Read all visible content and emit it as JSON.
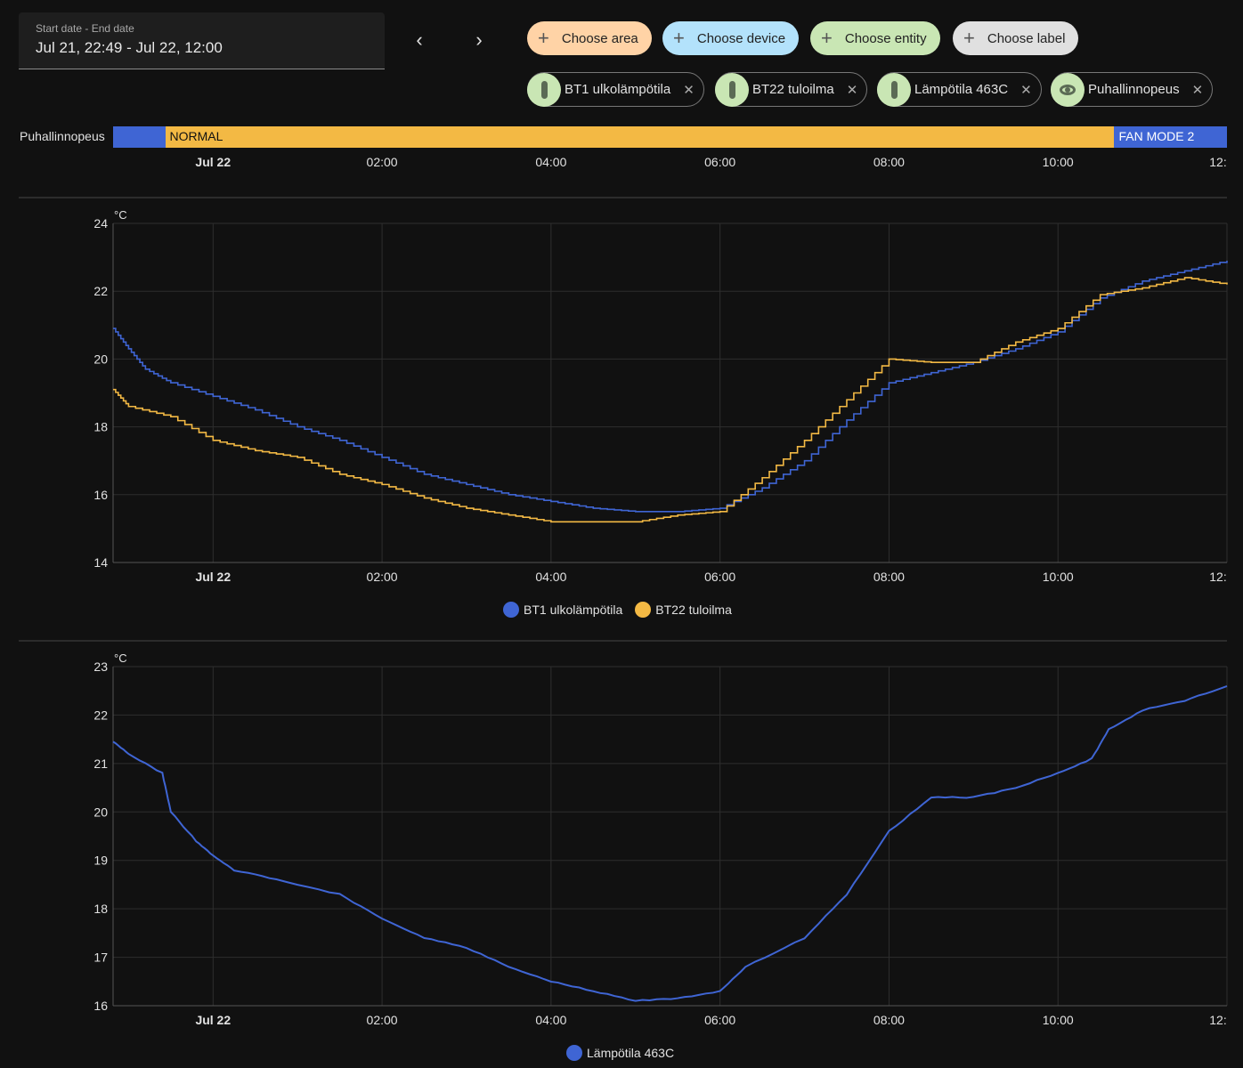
{
  "date_picker": {
    "label": "Start date - End date",
    "value": "Jul 21, 22:49 - Jul 22, 12:00"
  },
  "nav": {
    "prev_icon": "chevron-left-icon",
    "next_icon": "chevron-right-icon",
    "prev": "‹",
    "next": "›"
  },
  "target_chips": [
    {
      "label": "Choose area",
      "color": "#ffd3a6"
    },
    {
      "label": "Choose device",
      "color": "#b3e2fb"
    },
    {
      "label": "Choose entity",
      "color": "#c9e6b4"
    },
    {
      "label": "Choose label",
      "color": "#e0e0e0"
    }
  ],
  "entity_chips": [
    {
      "label": "BT1 ulkolämpötila",
      "icon": "thermometer-icon"
    },
    {
      "label": "BT22 tuloilma",
      "icon": "thermometer-icon"
    },
    {
      "label": "Lämpötila 463C",
      "icon": "thermometer-icon"
    },
    {
      "label": "Puhallinnopeus",
      "icon": "eye-icon"
    }
  ],
  "x_ticks": [
    "Jul 22",
    "02:00",
    "04:00",
    "06:00",
    "08:00",
    "10:00",
    "12:"
  ],
  "timeline": {
    "entity": "Puhallinnopeus",
    "segments": [
      {
        "state": "",
        "start": "07-21 22:49",
        "end": "07-21 23:26",
        "color": "#3f65d4"
      },
      {
        "state": "NORMAL",
        "start": "07-21 23:26",
        "end": "07-22 10:40",
        "color": "#f3b944"
      },
      {
        "state": "FAN MODE 2",
        "start": "07-22 10:40",
        "end": "07-22 12:00",
        "color": "#3f65d4"
      }
    ]
  },
  "chart_data": [
    {
      "type": "line",
      "unit": "°C",
      "ylim": [
        14,
        24
      ],
      "yticks": [
        "14",
        "16",
        "18",
        "20",
        "22",
        "24"
      ],
      "xlim": [
        "07-21 22:49",
        "07-22 12:00"
      ],
      "grid": true,
      "legend": "bottom",
      "step": true,
      "series": [
        {
          "name": "BT1 ulkolämpötila",
          "color": "#3f65d4",
          "x": [
            "07-21 22:49",
            "07-21 23:00",
            "07-21 23:12",
            "07-21 23:30",
            "07-22 00:00",
            "07-22 00:30",
            "07-22 01:00",
            "07-22 01:30",
            "07-22 02:00",
            "07-22 02:30",
            "07-22 03:00",
            "07-22 03:30",
            "07-22 04:00",
            "07-22 04:30",
            "07-22 05:00",
            "07-22 05:30",
            "07-22 06:00",
            "07-22 06:30",
            "07-22 07:00",
            "07-22 07:30",
            "07-22 08:00",
            "07-22 08:30",
            "07-22 09:00",
            "07-22 09:30",
            "07-22 10:00",
            "07-22 10:30",
            "07-22 11:00",
            "07-22 11:30",
            "07-22 12:00"
          ],
          "y": [
            20.9,
            20.3,
            19.7,
            19.3,
            18.9,
            18.5,
            18.0,
            17.6,
            17.1,
            16.6,
            16.3,
            16.0,
            15.8,
            15.6,
            15.5,
            15.5,
            15.6,
            16.2,
            17.0,
            18.2,
            19.3,
            19.6,
            19.9,
            20.3,
            20.8,
            21.8,
            22.3,
            22.6,
            22.9
          ]
        },
        {
          "name": "BT22 tuloilma",
          "color": "#f3b944",
          "x": [
            "07-21 22:49",
            "07-21 23:00",
            "07-21 23:30",
            "07-22 00:00",
            "07-22 00:30",
            "07-22 01:00",
            "07-22 01:30",
            "07-22 02:00",
            "07-22 02:30",
            "07-22 03:00",
            "07-22 03:30",
            "07-22 04:00",
            "07-22 04:30",
            "07-22 05:00",
            "07-22 05:30",
            "07-22 06:00",
            "07-22 06:30",
            "07-22 07:00",
            "07-22 07:30",
            "07-22 08:00",
            "07-22 08:30",
            "07-22 09:00",
            "07-22 09:30",
            "07-22 10:00",
            "07-22 10:30",
            "07-22 11:00",
            "07-22 11:30",
            "07-22 12:00"
          ],
          "y": [
            19.1,
            18.6,
            18.3,
            17.6,
            17.3,
            17.1,
            16.6,
            16.3,
            15.9,
            15.6,
            15.4,
            15.2,
            15.2,
            15.2,
            15.4,
            15.5,
            16.5,
            17.6,
            18.8,
            20.0,
            19.9,
            19.9,
            20.5,
            20.9,
            21.9,
            22.1,
            22.4,
            22.2
          ]
        }
      ]
    },
    {
      "type": "line",
      "unit": "°C",
      "ylim": [
        16,
        23
      ],
      "yticks": [
        "16",
        "17",
        "18",
        "19",
        "20",
        "21",
        "22",
        "23"
      ],
      "xlim": [
        "07-21 22:49",
        "07-22 12:00"
      ],
      "grid": true,
      "legend": "bottom",
      "series": [
        {
          "name": "Lämpötila 463C",
          "color": "#3f65d4",
          "x": [
            "07-21 22:49",
            "07-21 23:00",
            "07-21 23:24",
            "07-21 23:30",
            "07-21 23:48",
            "07-22 00:00",
            "07-22 00:15",
            "07-22 00:45",
            "07-22 01:30",
            "07-22 02:00",
            "07-22 02:30",
            "07-22 03:00",
            "07-22 03:30",
            "07-22 04:00",
            "07-22 04:30",
            "07-22 05:00",
            "07-22 05:30",
            "07-22 06:00",
            "07-22 06:18",
            "07-22 07:00",
            "07-22 07:30",
            "07-22 08:00",
            "07-22 08:30",
            "07-22 09:00",
            "07-22 09:30",
            "07-22 10:00",
            "07-22 10:24",
            "07-22 10:36",
            "07-22 11:00",
            "07-22 11:30",
            "07-22 12:00"
          ],
          "y": [
            21.45,
            21.2,
            20.8,
            20.0,
            19.4,
            19.1,
            18.8,
            18.6,
            18.3,
            17.8,
            17.4,
            17.2,
            16.8,
            16.5,
            16.3,
            16.1,
            16.15,
            16.3,
            16.8,
            17.4,
            18.3,
            19.6,
            20.3,
            20.3,
            20.5,
            20.8,
            21.1,
            21.7,
            22.1,
            22.3,
            22.6
          ]
        }
      ]
    }
  ]
}
